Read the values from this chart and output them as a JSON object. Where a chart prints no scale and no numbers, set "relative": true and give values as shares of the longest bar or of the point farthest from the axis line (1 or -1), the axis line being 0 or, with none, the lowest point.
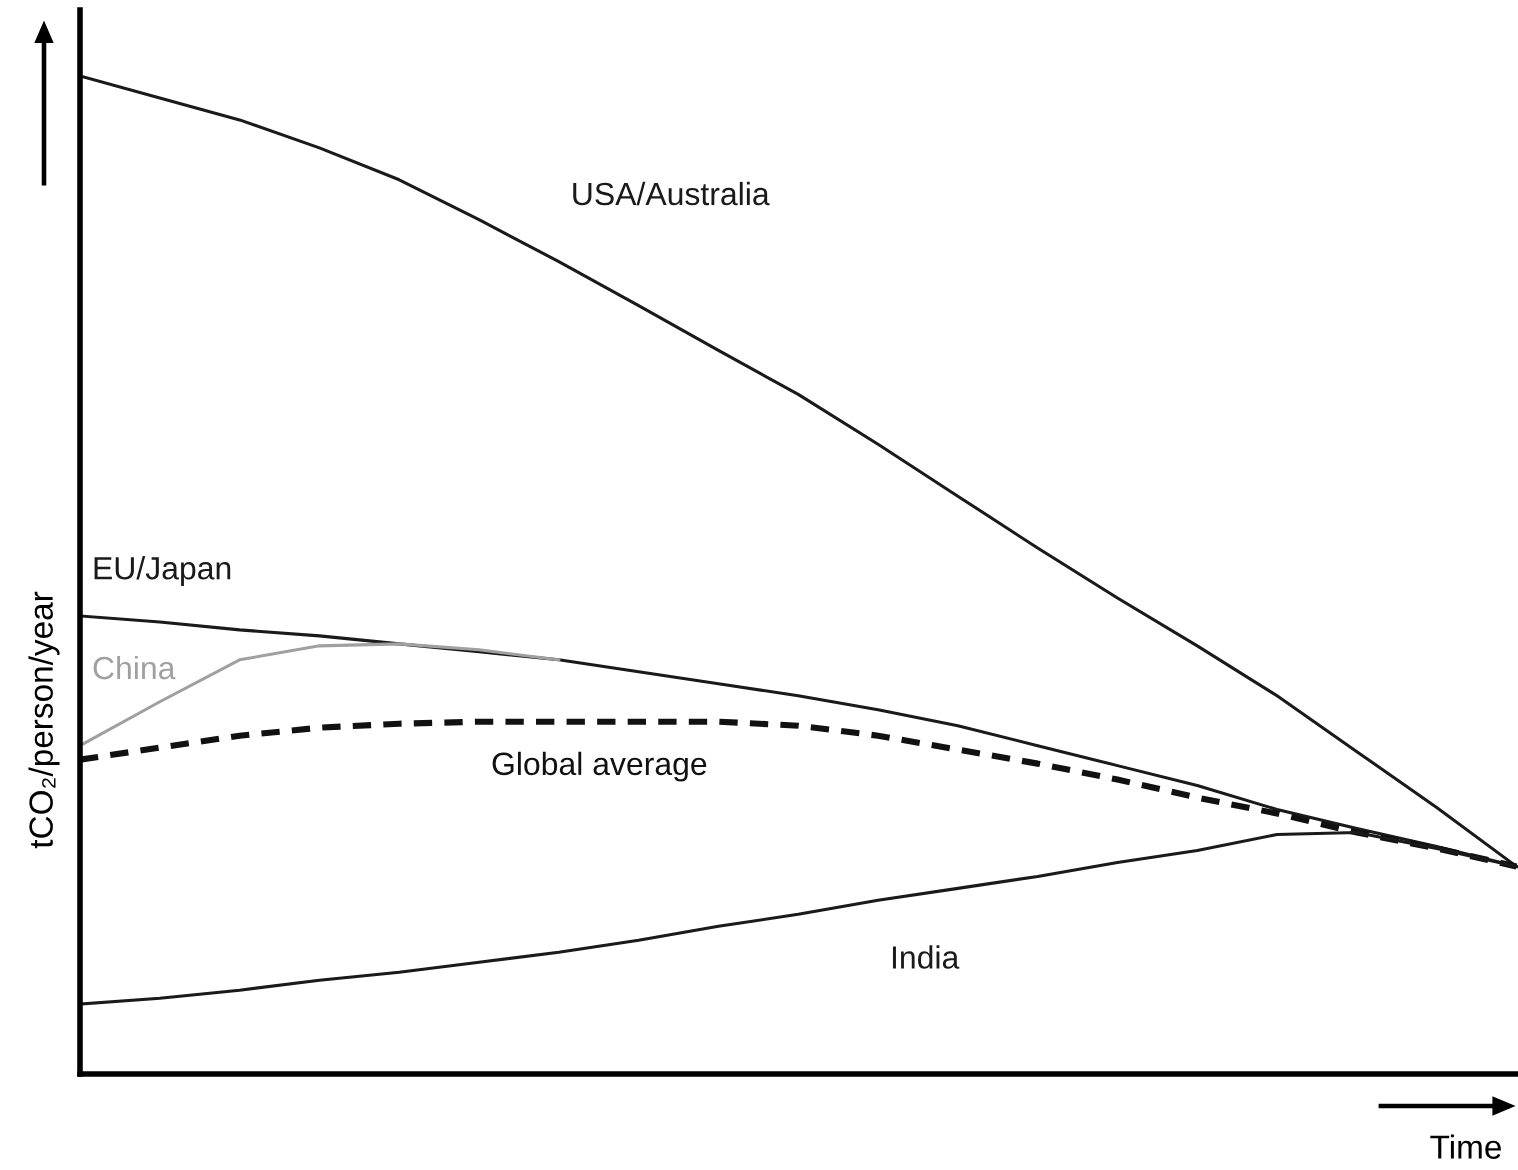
{
  "chart_data": {
    "type": "line",
    "relative": true,
    "xlabel": "Time",
    "ylabel": "tCO₂/person/year",
    "categories": [
      null,
      null,
      null,
      null,
      null,
      null,
      null,
      null,
      null,
      null,
      null,
      null,
      null,
      null,
      null,
      null,
      null,
      null,
      null
    ],
    "series": [
      {
        "name": "USA/Australia",
        "color": "#1a1a1a",
        "line_style": "solid",
        "values": [
          1.0,
          0.978,
          0.956,
          0.928,
          0.896,
          0.856,
          0.814,
          0.77,
          0.725,
          0.681,
          0.631,
          0.579,
          0.527,
          0.477,
          0.429,
          0.379,
          0.323,
          0.267,
          0.208
        ]
      },
      {
        "name": "EU/Japan",
        "color": "#1a1a1a",
        "line_style": "solid",
        "values": [
          0.459,
          0.453,
          0.445,
          0.439,
          0.431,
          0.423,
          0.415,
          0.403,
          0.391,
          0.379,
          0.365,
          0.349,
          0.329,
          0.309,
          0.289,
          0.265,
          0.246,
          0.228,
          0.208
        ]
      },
      {
        "name": "China",
        "color": "#a0a0a0",
        "line_style": "solid",
        "values": [
          0.329,
          0.373,
          0.415,
          0.429,
          0.431,
          0.425,
          0.415,
          null,
          null,
          null,
          null,
          null,
          null,
          null,
          null,
          null,
          null,
          null,
          null
        ]
      },
      {
        "name": "Global average",
        "color": "#111111",
        "line_style": "dashed",
        "values": [
          0.315,
          0.327,
          0.339,
          0.347,
          0.351,
          0.353,
          0.353,
          0.353,
          0.353,
          0.349,
          0.339,
          0.325,
          0.311,
          0.295,
          0.277,
          0.261,
          0.242,
          0.226,
          0.208
        ]
      },
      {
        "name": "India",
        "color": "#1a1a1a",
        "line_style": "solid",
        "values": [
          0.07,
          0.076,
          0.084,
          0.094,
          0.102,
          0.112,
          0.122,
          0.134,
          0.148,
          0.16,
          0.174,
          0.186,
          0.198,
          0.212,
          0.224,
          0.24,
          0.242,
          0.226,
          0.208
        ]
      }
    ]
  }
}
